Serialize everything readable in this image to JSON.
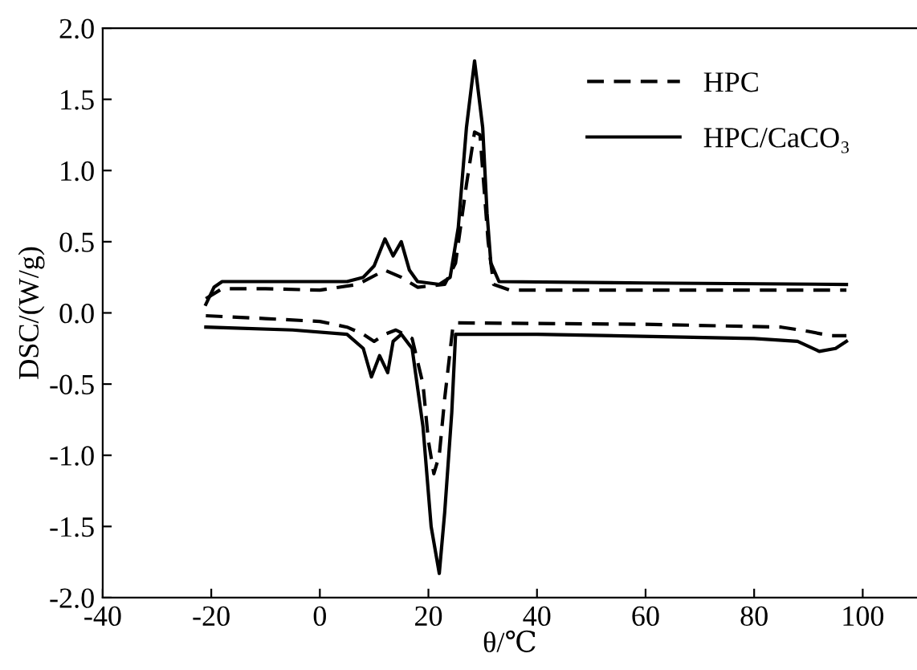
{
  "chart_data": {
    "type": "line",
    "xlabel": "θ/℃",
    "ylabel": "DSC/(W/g)",
    "xlim": [
      -40,
      110
    ],
    "xticks": [
      -40,
      -20,
      0,
      20,
      40,
      60,
      80,
      100
    ],
    "ylim": [
      -2.0,
      2.0
    ],
    "yticks": [
      {
        "value": -2.0,
        "label": "-2.0"
      },
      {
        "value": -1.5,
        "label": "-1.5"
      },
      {
        "value": -1.0,
        "label": "-1.0"
      },
      {
        "value": -0.5,
        "label": "-0.5"
      },
      {
        "value": 0.0,
        "label": "0.0"
      },
      {
        "value": 0.5,
        "label": "0.5"
      },
      {
        "value": 1.0,
        "label": "1.0"
      },
      {
        "value": 1.5,
        "label": "1.5"
      },
      {
        "value": 2.0,
        "label": "2.0"
      }
    ],
    "grid": false,
    "legend": "top right",
    "marker": "none",
    "series": [
      {
        "name": "HPC",
        "color": "#000000",
        "line_style": "dashed",
        "x": [
          -21,
          -18,
          -10,
          0,
          7,
          12,
          15,
          18,
          23,
          25,
          27,
          28.5,
          29.5,
          31,
          32,
          35,
          60,
          97
        ],
        "values": [
          0.1,
          0.17,
          0.17,
          0.16,
          0.2,
          0.3,
          0.25,
          0.18,
          0.2,
          0.35,
          0.9,
          1.27,
          1.25,
          0.5,
          0.2,
          0.16,
          0.16,
          0.16
        ]
      },
      {
        "name": "HPC/CaCO₃",
        "color": "#000000",
        "line_style": "solid",
        "x": [
          -21,
          -19.5,
          -18,
          -10,
          5,
          8,
          10,
          12,
          13.5,
          15,
          16.5,
          18,
          22,
          24,
          25.5,
          27,
          28.5,
          30,
          30.8,
          31.5,
          33,
          60,
          97
        ],
        "values": [
          0.06,
          0.18,
          0.22,
          0.22,
          0.22,
          0.25,
          0.33,
          0.52,
          0.4,
          0.5,
          0.3,
          0.22,
          0.2,
          0.25,
          0.6,
          1.3,
          1.77,
          1.3,
          0.7,
          0.35,
          0.22,
          0.21,
          0.2
        ]
      },
      {
        "color": "#000000",
        "line_style": "dashed",
        "x": [
          -21,
          -10,
          0,
          5,
          8,
          10,
          12,
          14,
          17,
          19,
          20,
          21,
          22,
          23,
          24.5,
          25,
          60,
          85,
          90,
          94,
          97
        ],
        "values": [
          -0.02,
          -0.04,
          -0.06,
          -0.1,
          -0.15,
          -0.2,
          -0.15,
          -0.12,
          -0.18,
          -0.5,
          -0.9,
          -1.13,
          -1.0,
          -0.6,
          -0.1,
          -0.07,
          -0.08,
          -0.1,
          -0.13,
          -0.16,
          -0.16
        ]
      },
      {
        "color": "#000000",
        "line_style": "solid",
        "x": [
          -21,
          -5,
          5,
          8,
          9.5,
          11,
          12.5,
          13.5,
          15,
          17,
          19,
          20.5,
          22,
          23,
          24.3,
          25,
          40,
          80,
          88,
          92,
          95,
          97
        ],
        "values": [
          -0.1,
          -0.12,
          -0.15,
          -0.25,
          -0.45,
          -0.3,
          -0.42,
          -0.2,
          -0.15,
          -0.25,
          -0.8,
          -1.5,
          -1.83,
          -1.4,
          -0.7,
          -0.15,
          -0.15,
          -0.18,
          -0.2,
          -0.27,
          -0.25,
          -0.2
        ]
      }
    ]
  }
}
